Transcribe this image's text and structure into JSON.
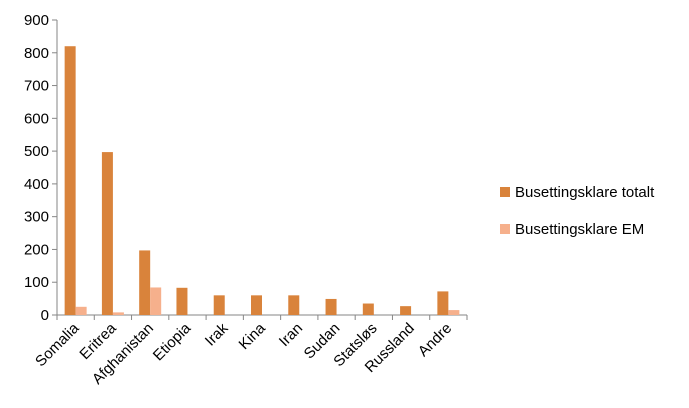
{
  "chart_data": {
    "type": "bar",
    "categories": [
      "Somalia",
      "Eritrea",
      "Afghanistan",
      "Etiopia",
      "Irak",
      "Kina",
      "Iran",
      "Sudan",
      "Statsløs",
      "Russland",
      "Andre"
    ],
    "series": [
      {
        "name": "Busettingsklare totalt",
        "color": "#D9833B",
        "values": [
          820,
          497,
          197,
          83,
          60,
          60,
          60,
          49,
          35,
          27,
          72
        ]
      },
      {
        "name": "Busettingsklare EM",
        "color": "#F6B08C",
        "values": [
          25,
          8,
          84,
          0,
          0,
          0,
          0,
          0,
          0,
          0,
          15
        ]
      }
    ],
    "ylim": [
      0,
      900
    ],
    "yticks": [
      0,
      100,
      200,
      300,
      400,
      500,
      600,
      700,
      800,
      900
    ],
    "grid": false,
    "legend_position": "right"
  }
}
